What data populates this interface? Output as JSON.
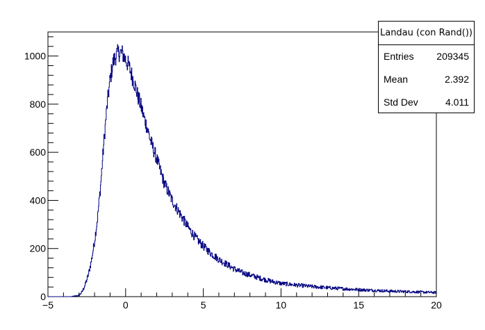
{
  "chart_data": {
    "type": "histogram",
    "title": "",
    "xlabel": "",
    "ylabel": "",
    "xlim": [
      -5,
      20
    ],
    "ylim": [
      0,
      1100
    ],
    "line_color": "#000080",
    "x_ticks": [
      {
        "value": -5,
        "label": "−5"
      },
      {
        "value": 0,
        "label": "0"
      },
      {
        "value": 5,
        "label": "5"
      },
      {
        "value": 10,
        "label": "10"
      },
      {
        "value": 15,
        "label": "15"
      },
      {
        "value": 20,
        "label": "20"
      }
    ],
    "y_ticks": [
      {
        "value": 0,
        "label": "0"
      },
      {
        "value": 200,
        "label": "200"
      },
      {
        "value": 400,
        "label": "400"
      },
      {
        "value": 600,
        "label": "600"
      },
      {
        "value": 800,
        "label": "800"
      },
      {
        "value": 1000,
        "label": "1000"
      }
    ],
    "x": [
      -5.0,
      -4.0,
      -3.5,
      -3.0,
      -2.8,
      -2.6,
      -2.4,
      -2.2,
      -2.0,
      -1.8,
      -1.6,
      -1.4,
      -1.2,
      -1.0,
      -0.8,
      -0.6,
      -0.4,
      -0.2,
      0.0,
      0.2,
      0.4,
      0.6,
      0.8,
      1.0,
      1.2,
      1.4,
      1.6,
      1.8,
      2.0,
      2.2,
      2.5,
      3.0,
      3.5,
      4.0,
      4.5,
      5.0,
      5.5,
      6.0,
      6.5,
      7.0,
      7.5,
      8.0,
      8.5,
      9.0,
      9.5,
      10.0,
      11.0,
      12.0,
      13.0,
      14.0,
      15.0,
      16.0,
      17.0,
      18.0,
      19.0,
      20.0
    ],
    "y": [
      0,
      0,
      0,
      5,
      20,
      50,
      90,
      150,
      230,
      330,
      470,
      640,
      790,
      900,
      975,
      1005,
      1015,
      1010,
      985,
      960,
      920,
      880,
      830,
      790,
      740,
      700,
      650,
      610,
      575,
      530,
      470,
      400,
      345,
      290,
      245,
      210,
      180,
      155,
      135,
      115,
      100,
      90,
      80,
      70,
      62,
      55,
      48,
      42,
      37,
      33,
      29,
      26,
      23,
      21,
      19,
      17
    ],
    "stats": {
      "title": "Landau (con Rand())",
      "rows": [
        {
          "label": "Entries",
          "value": "209345"
        },
        {
          "label": "Mean",
          "value": "2.392"
        },
        {
          "label": "Std Dev",
          "value": "4.011"
        }
      ]
    }
  }
}
